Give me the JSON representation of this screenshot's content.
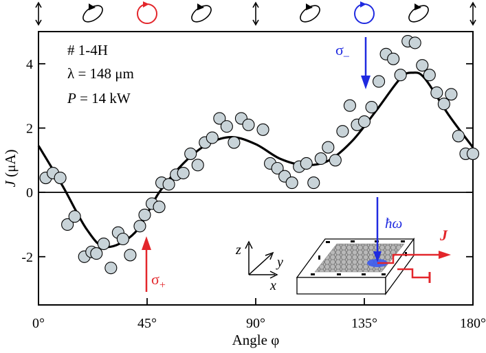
{
  "chart_data": {
    "type": "scatter",
    "xlabel": "Angle φ",
    "ylabel_symbol": "J",
    "ylabel_unit": " (μA)",
    "xlim": [
      0,
      180
    ],
    "ylim": [
      -3.5,
      5
    ],
    "x_ticks": [
      0,
      45,
      90,
      135,
      180
    ],
    "x_tick_labels": [
      "0°",
      "45°",
      "90°",
      "135°",
      "180°"
    ],
    "y_ticks": [
      -2,
      0,
      2,
      4
    ],
    "y_tick_labels": [
      "-2",
      "0",
      "2",
      "4"
    ],
    "zero_line": true,
    "info_text": {
      "sample": "# 1-4H",
      "wavelength_symbol": "λ",
      "wavelength_value": " = 148 μm",
      "power_symbol": "P",
      "power_value": " = 14 kW"
    },
    "series": [
      {
        "name": "measured",
        "marker": "circle",
        "fill": "#c8d3d8",
        "x": [
          3,
          6,
          9,
          12,
          15,
          19,
          22,
          24,
          27,
          30,
          33,
          35,
          38,
          42,
          44,
          47,
          50,
          51,
          54,
          57,
          60,
          63,
          66,
          69,
          72,
          75,
          78,
          81,
          84,
          87,
          93,
          96,
          99,
          102,
          105,
          108,
          111,
          114,
          117,
          120,
          123,
          126,
          129,
          132,
          135,
          138,
          141,
          144,
          147,
          150,
          153,
          156,
          159,
          162,
          165,
          168,
          171,
          174,
          177,
          180
        ],
        "y": [
          0.45,
          0.6,
          0.45,
          -1.0,
          -0.75,
          -2.0,
          -1.85,
          -1.9,
          -1.6,
          -2.35,
          -1.25,
          -1.45,
          -1.95,
          -1.05,
          -0.7,
          -0.35,
          -0.45,
          0.3,
          0.25,
          0.55,
          0.6,
          1.2,
          0.85,
          1.55,
          1.7,
          2.3,
          2.05,
          1.55,
          2.3,
          2.1,
          1.95,
          0.9,
          0.75,
          0.5,
          0.3,
          0.8,
          0.9,
          0.3,
          1.05,
          1.4,
          1.0,
          1.9,
          2.7,
          2.1,
          2.2,
          2.65,
          3.45,
          4.3,
          4.15,
          3.65,
          4.7,
          4.65,
          3.95,
          3.65,
          3.1,
          2.75,
          3.05,
          1.75,
          1.2,
          1.2
        ]
      },
      {
        "name": "fit",
        "type": "line",
        "color": "#000000",
        "x": [
          0,
          10,
          20,
          28,
          40,
          50,
          60,
          70,
          80,
          90,
          100,
          110,
          120,
          130,
          140,
          150,
          155,
          160,
          170,
          180
        ],
        "y": [
          1.45,
          0.2,
          -1.15,
          -1.7,
          -1.25,
          0.0,
          0.9,
          1.5,
          1.72,
          1.5,
          1.05,
          0.85,
          0.98,
          1.6,
          2.55,
          3.55,
          3.72,
          3.55,
          2.4,
          1.4
        ]
      }
    ],
    "annotations": {
      "sigma_plus": {
        "base": "σ",
        "sub": "+",
        "x": 45,
        "color": "#e3262b"
      },
      "sigma_minus": {
        "base": "σ",
        "sub": "–",
        "x": 135,
        "color": "#1f2ae0"
      },
      "photon": "ħω",
      "current": "J",
      "axis_z": "z",
      "axis_y": "y",
      "axis_x": "x"
    },
    "polarization_strip": {
      "items": [
        {
          "kind": "linear",
          "x": 0
        },
        {
          "kind": "elliptic",
          "x": 22.5
        },
        {
          "kind": "circle",
          "x": 45,
          "color": "#e3262b"
        },
        {
          "kind": "elliptic",
          "x": 67.5
        },
        {
          "kind": "linear",
          "x": 90
        },
        {
          "kind": "elliptic",
          "x": 112.5
        },
        {
          "kind": "circle",
          "x": 135,
          "color": "#1f2ae0"
        },
        {
          "kind": "elliptic",
          "x": 157.5
        },
        {
          "kind": "linear",
          "x": 180
        }
      ]
    }
  }
}
